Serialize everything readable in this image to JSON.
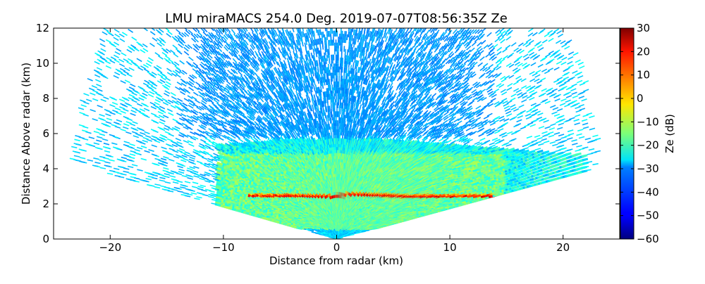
{
  "chart_data": {
    "type": "heatmap",
    "title": "LMU miraMACS 254.0 Deg. 2019-07-07T08:56:35Z  Ze",
    "xlabel": "Distance from radar (km)",
    "ylabel": "Distance Above radar  (km)",
    "xlim": [
      -25,
      25
    ],
    "ylim": [
      0,
      12
    ],
    "xticks": [
      "−20",
      "−10",
      "0",
      "10",
      "20"
    ],
    "yticks": [
      "0",
      "2",
      "4",
      "6",
      "8",
      "10",
      "12"
    ],
    "grid": false,
    "colorbar": {
      "label": "Ze (dB)",
      "range": [
        -60,
        30
      ],
      "ticks": [
        "30",
        "20",
        "10",
        "0",
        "−10",
        "−20",
        "−30",
        "−40",
        "−50",
        "−60"
      ],
      "colormap": "jet"
    },
    "scan": {
      "elevation_limits_deg": [
        10,
        170
      ],
      "max_range_km": 23.9,
      "cloud_layer_km": [
        2.6,
        5.8
      ],
      "strong_band_km": [
        2.1,
        2.8
      ],
      "strong_band_ze_db": [
        10,
        25
      ],
      "cloud_ze_db": [
        -25,
        -10
      ],
      "clutter_ze_db": [
        -35,
        -25
      ]
    }
  }
}
